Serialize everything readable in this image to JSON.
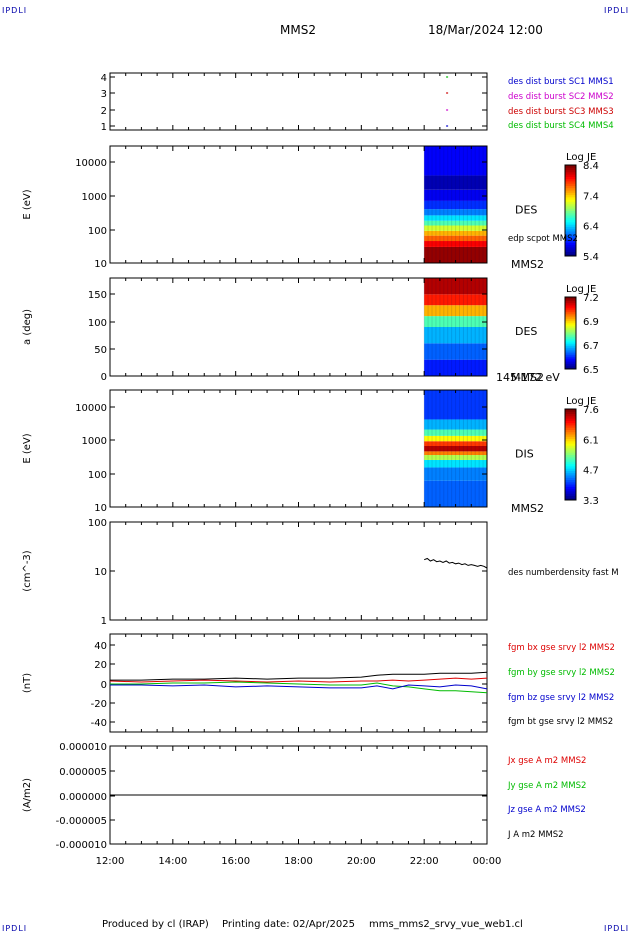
{
  "header": {
    "corner_left_top": "IPDLI",
    "corner_right_top": "IPDLI",
    "corner_left_bottom": "IPDLI",
    "corner_right_bottom": "IPDLI",
    "spacecraft": "MMS2",
    "datetime": "18/Mar/2024 12:00"
  },
  "footer": {
    "produced_by": "Produced by cl (IRAP)",
    "printing_date": "Printing date: 02/Apr/2025",
    "filename": "mms_mms2_srvy_vue_web1.cl"
  },
  "time_axis": {
    "labels": [
      "12:00",
      "14:00",
      "16:00",
      "18:00",
      "20:00",
      "22:00",
      "00:00"
    ],
    "range_hours": [
      12,
      24
    ]
  },
  "chart_data": [
    {
      "type": "scatter",
      "id": "burst",
      "yticks": [
        "4",
        "3",
        "2",
        "1"
      ],
      "series": [
        {
          "name": "des dist burst SC1 MMS1",
          "color": "#0000cc",
          "x": [
            22.73
          ],
          "y": [
            1
          ]
        },
        {
          "name": "des dist burst SC2 MMS2",
          "color": "#cc00cc",
          "x": [
            22.73
          ],
          "y": [
            2
          ]
        },
        {
          "name": "des dist burst SC3 MMS3",
          "color": "#cc0000",
          "x": [
            22.73
          ],
          "y": [
            3
          ]
        },
        {
          "name": "des dist burst SC4 MMS4",
          "color": "#00bb00",
          "x": [
            22.73
          ],
          "y": [
            4
          ]
        }
      ],
      "ylim": [
        0.5,
        4.5
      ]
    },
    {
      "type": "heatmap",
      "id": "des_e",
      "ylabel": "E (eV)",
      "yticks": [
        "10000",
        "1000",
        "100",
        "10"
      ],
      "scale": "log",
      "ylim": [
        10,
        30000
      ],
      "data_x_range": [
        22.0,
        24.0
      ],
      "right_label": "DES",
      "right_sublabel": "MMS2",
      "annotation": "edp scpot MMS2",
      "colorbar": {
        "title": "Log JE",
        "ticks": [
          "8.4",
          "7.4",
          "6.4",
          "5.4"
        ],
        "min": 5.4,
        "max": 8.4
      },
      "bands": [
        {
          "ymin": 10,
          "ymax": 30,
          "level": 0.98
        },
        {
          "ymin": 30,
          "ymax": 45,
          "level": 0.88
        },
        {
          "ymin": 45,
          "ymax": 65,
          "level": 0.78
        },
        {
          "ymin": 65,
          "ymax": 90,
          "level": 0.7
        },
        {
          "ymin": 90,
          "ymax": 130,
          "level": 0.58
        },
        {
          "ymin": 130,
          "ymax": 180,
          "level": 0.45
        },
        {
          "ymin": 180,
          "ymax": 260,
          "level": 0.35
        },
        {
          "ymin": 260,
          "ymax": 400,
          "level": 0.25
        },
        {
          "ymin": 400,
          "ymax": 700,
          "level": 0.17
        },
        {
          "ymin": 700,
          "ymax": 1500,
          "level": 0.11
        },
        {
          "ymin": 1500,
          "ymax": 4000,
          "level": 0.05
        },
        {
          "ymin": 4000,
          "ymax": 30000,
          "level": 0.12
        }
      ]
    },
    {
      "type": "heatmap",
      "id": "des_pa",
      "ylabel": "a (deg)",
      "yticks": [
        "150",
        "100",
        "50",
        "0"
      ],
      "ylim": [
        0,
        180
      ],
      "data_x_range": [
        22.0,
        24.0
      ],
      "right_label": "DES",
      "right_sublabel": "MMS2",
      "energy_label": "145-172 eV",
      "colorbar": {
        "title": "Log JE",
        "ticks": [
          "7.2",
          "6.9",
          "6.7",
          "6.5"
        ],
        "min": 6.5,
        "max": 7.2
      },
      "bands": [
        {
          "ymin": 0,
          "ymax": 30,
          "level": 0.15
        },
        {
          "ymin": 30,
          "ymax": 60,
          "level": 0.22
        },
        {
          "ymin": 60,
          "ymax": 90,
          "level": 0.3
        },
        {
          "ymin": 90,
          "ymax": 110,
          "level": 0.45
        },
        {
          "ymin": 110,
          "ymax": 130,
          "level": 0.7
        },
        {
          "ymin": 130,
          "ymax": 150,
          "level": 0.85
        },
        {
          "ymin": 150,
          "ymax": 180,
          "level": 0.95
        }
      ]
    },
    {
      "type": "heatmap",
      "id": "dis_e",
      "ylabel": "E (eV)",
      "yticks": [
        "10000",
        "1000",
        "100",
        "10"
      ],
      "scale": "log",
      "ylim": [
        10,
        30000
      ],
      "data_x_range": [
        22.0,
        24.0
      ],
      "right_label": "DIS",
      "right_sublabel": "MMS2",
      "colorbar": {
        "title": "Log JE",
        "ticks": [
          "7.6",
          "6.1",
          "4.7",
          "3.3"
        ],
        "min": 3.3,
        "max": 7.6
      },
      "bands": [
        {
          "ymin": 10,
          "ymax": 60,
          "level": 0.22
        },
        {
          "ymin": 60,
          "ymax": 150,
          "level": 0.25
        },
        {
          "ymin": 150,
          "ymax": 250,
          "level": 0.35
        },
        {
          "ymin": 250,
          "ymax": 350,
          "level": 0.55
        },
        {
          "ymin": 350,
          "ymax": 450,
          "level": 0.75
        },
        {
          "ymin": 450,
          "ymax": 650,
          "level": 0.95
        },
        {
          "ymin": 650,
          "ymax": 900,
          "level": 0.82
        },
        {
          "ymin": 900,
          "ymax": 1300,
          "level": 0.62
        },
        {
          "ymin": 1300,
          "ymax": 2000,
          "level": 0.45
        },
        {
          "ymin": 2000,
          "ymax": 4000,
          "level": 0.3
        },
        {
          "ymin": 4000,
          "ymax": 30000,
          "level": 0.18
        }
      ]
    },
    {
      "type": "line",
      "id": "density",
      "ylabel": "(cm^-3)",
      "yticks": [
        "100",
        "10",
        "1"
      ],
      "scale": "log",
      "ylim": [
        1,
        100
      ],
      "series": [
        {
          "name": "des numberdensity fast M",
          "color": "#000000",
          "x": [
            22.0,
            22.1,
            22.2,
            22.3,
            22.4,
            22.5,
            22.6,
            22.7,
            22.8,
            22.9,
            23.0,
            23.1,
            23.2,
            23.3,
            23.4,
            23.5,
            23.6,
            23.7,
            23.8,
            23.9,
            24.0
          ],
          "y": [
            17,
            18,
            16,
            17,
            15.5,
            16,
            15,
            16,
            14.5,
            15,
            14,
            14.5,
            13.5,
            14,
            13,
            13.5,
            13,
            12.5,
            13,
            12.5,
            11.5
          ]
        }
      ]
    },
    {
      "type": "line",
      "id": "b_field",
      "ylabel": "(nT)",
      "yticks": [
        "40",
        "20",
        "0",
        "-20",
        "-40"
      ],
      "ylim": [
        -50,
        50
      ],
      "series": [
        {
          "name": "fgm bx gse srvy l2 MMS2",
          "color": "#dd0000",
          "x": [
            12,
            13,
            14,
            15,
            16,
            17,
            18,
            19,
            20,
            20.5,
            21,
            21.5,
            22,
            22.5,
            23,
            23.5,
            24
          ],
          "y": [
            2,
            1,
            2,
            3,
            2,
            1,
            2,
            1,
            2,
            2,
            3,
            2,
            3,
            4,
            5,
            4,
            5
          ]
        },
        {
          "name": "fgm by gse srvy l2 MMS2",
          "color": "#00bb00",
          "x": [
            12,
            13,
            14,
            15,
            16,
            17,
            18,
            19,
            20,
            20.5,
            21,
            21.5,
            22,
            22.5,
            23,
            23.5,
            24
          ],
          "y": [
            -1,
            -1,
            0,
            0,
            1,
            0,
            -1,
            -2,
            -2,
            0,
            -3,
            -4,
            -6,
            -8,
            -8,
            -9,
            -10
          ]
        },
        {
          "name": "fgm bz gse srvy l2 MMS2",
          "color": "#0000cc",
          "x": [
            12,
            13,
            14,
            15,
            16,
            17,
            18,
            19,
            20,
            20.5,
            21,
            21.5,
            22,
            22.5,
            23,
            23.5,
            24
          ],
          "y": [
            -2,
            -2,
            -3,
            -2,
            -4,
            -3,
            -4,
            -5,
            -5,
            -3,
            -6,
            -2,
            -3,
            -4,
            -2,
            -3,
            -6
          ]
        },
        {
          "name": "fgm bt gse srvy l2 MMS2",
          "color": "#000000",
          "x": [
            12,
            13,
            14,
            15,
            16,
            17,
            18,
            19,
            20,
            20.5,
            21,
            21.5,
            22,
            22.5,
            23,
            23.5,
            24
          ],
          "y": [
            3,
            3,
            4,
            4,
            5,
            4,
            5,
            5,
            6,
            8,
            9,
            9,
            9,
            10,
            10,
            10,
            11
          ]
        }
      ]
    },
    {
      "type": "line",
      "id": "current",
      "ylabel": "(A/m2)",
      "yticks": [
        "0.000010",
        "0.000005",
        "0.000000",
        "-0.000005",
        "-0.000010"
      ],
      "ylim": [
        -1e-05,
        1e-05
      ],
      "series": [
        {
          "name": "Jx gse A m2 MMS2",
          "color": "#dd0000",
          "x": [
            12,
            24
          ],
          "y": [
            0,
            0
          ]
        },
        {
          "name": "Jy gse A m2 MMS2",
          "color": "#00bb00",
          "x": [
            12,
            24
          ],
          "y": [
            0,
            0
          ]
        },
        {
          "name": "Jz gse A m2 MMS2",
          "color": "#0000cc",
          "x": [
            12,
            24
          ],
          "y": [
            0,
            0
          ]
        },
        {
          "name": "J A m2 MMS2",
          "color": "#000000",
          "x": [
            12,
            24
          ],
          "y": [
            0,
            0
          ]
        }
      ]
    }
  ]
}
